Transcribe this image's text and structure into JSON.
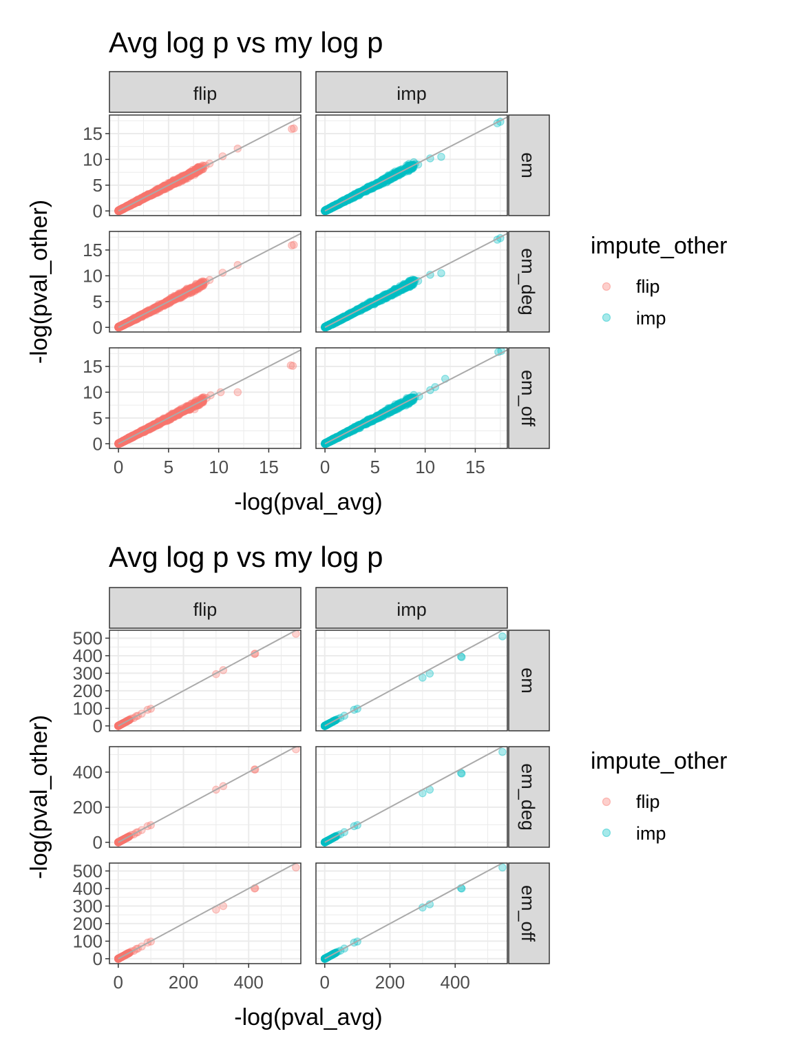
{
  "colors": {
    "flip": "#F8766D",
    "imp": "#00BFC4",
    "refline": "#AAAAAA",
    "strip": "#D9D9D9",
    "grid": "#EBEBEB",
    "border": "#333333"
  },
  "chart_data": [
    {
      "type": "scatter",
      "title": "Avg log p vs my log p",
      "xlabel": "-log(pval_avg)",
      "ylabel": "-log(pval_other)",
      "facet_cols": [
        "flip",
        "imp"
      ],
      "facet_rows": [
        "em",
        "em_deg",
        "em_off"
      ],
      "xlim": [
        -0.9,
        18.2
      ],
      "ylim": [
        -0.9,
        18.6
      ],
      "x_ticks": [
        "0",
        "5",
        "10",
        "15"
      ],
      "x_tick_values": [
        0,
        5,
        10,
        15
      ],
      "y_ticks": [
        "0",
        "5",
        "10",
        "15"
      ],
      "y_tick_values": [
        0,
        5,
        10,
        15
      ],
      "reference_line": "y = x",
      "legend": {
        "title": "impute_other",
        "entries": [
          "flip",
          "imp"
        ],
        "placement": "right"
      },
      "grid": true,
      "panels": [
        {
          "col": "flip",
          "row": "em",
          "bulk_max_x": 8.5,
          "points": [
            [
              7.2,
              7.6
            ],
            [
              7.6,
              7.0
            ],
            [
              8.0,
              7.9
            ],
            [
              8.7,
              8.8
            ],
            [
              9.1,
              9.2
            ],
            [
              10.4,
              10.6
            ],
            [
              11.9,
              12.1
            ],
            [
              17.3,
              15.9
            ],
            [
              17.5,
              16.0
            ]
          ]
        },
        {
          "col": "imp",
          "row": "em",
          "bulk_max_x": 8.9,
          "points": [
            [
              7.0,
              7.4
            ],
            [
              8.2,
              8.1
            ],
            [
              9.0,
              9.1
            ],
            [
              9.3,
              9.0
            ],
            [
              10.5,
              10.2
            ],
            [
              11.6,
              10.5
            ],
            [
              17.2,
              17.0
            ],
            [
              17.5,
              17.3
            ]
          ]
        },
        {
          "col": "flip",
          "row": "em_deg",
          "bulk_max_x": 8.5,
          "points": [
            [
              7.2,
              7.6
            ],
            [
              7.6,
              7.0
            ],
            [
              8.0,
              7.9
            ],
            [
              8.7,
              8.8
            ],
            [
              9.1,
              9.2
            ],
            [
              10.4,
              10.6
            ],
            [
              11.9,
              12.1
            ],
            [
              17.3,
              15.9
            ],
            [
              17.5,
              16.0
            ]
          ]
        },
        {
          "col": "imp",
          "row": "em_deg",
          "bulk_max_x": 8.9,
          "points": [
            [
              7.0,
              7.4
            ],
            [
              8.2,
              8.1
            ],
            [
              9.0,
              9.1
            ],
            [
              9.3,
              9.0
            ],
            [
              10.5,
              10.2
            ],
            [
              11.6,
              10.5
            ],
            [
              17.2,
              17.0
            ],
            [
              17.5,
              17.3
            ]
          ]
        },
        {
          "col": "flip",
          "row": "em_off",
          "bulk_max_x": 8.5,
          "points": [
            [
              7.0,
              7.2
            ],
            [
              7.6,
              6.7
            ],
            [
              8.0,
              7.9
            ],
            [
              8.8,
              8.9
            ],
            [
              9.2,
              9.4
            ],
            [
              10.2,
              10.0
            ],
            [
              11.9,
              10.0
            ],
            [
              17.2,
              15.2
            ],
            [
              17.4,
              15.1
            ]
          ]
        },
        {
          "col": "imp",
          "row": "em_off",
          "bulk_max_x": 8.9,
          "points": [
            [
              7.0,
              7.3
            ],
            [
              8.2,
              8.1
            ],
            [
              9.0,
              9.0
            ],
            [
              9.4,
              9.2
            ],
            [
              10.5,
              10.4
            ],
            [
              11.0,
              11.0
            ],
            [
              12.0,
              12.6
            ],
            [
              17.3,
              17.8
            ],
            [
              17.6,
              18.0
            ]
          ]
        }
      ]
    },
    {
      "type": "scatter",
      "title": "Avg log p vs my log p",
      "xlabel": "-log(pval_avg)",
      "ylabel": "-log(pval_other)",
      "facet_cols": [
        "flip",
        "imp"
      ],
      "facet_rows": [
        "em",
        "em_deg",
        "em_off"
      ],
      "xlim": [
        -27,
        560
      ],
      "ylim": [
        -28,
        545
      ],
      "x_ticks": [
        "0",
        "200",
        "400"
      ],
      "x_tick_values": [
        0,
        200,
        400
      ],
      "y_ticks_by_row": [
        [
          "0",
          "100",
          "200",
          "300",
          "400",
          "500"
        ],
        [
          "0",
          "200",
          "400"
        ],
        [
          "0",
          "100",
          "200",
          "300",
          "400",
          "500"
        ]
      ],
      "y_tick_values_by_row": [
        [
          0,
          100,
          200,
          300,
          400,
          500
        ],
        [
          0,
          200,
          400
        ],
        [
          0,
          100,
          200,
          300,
          400,
          500
        ]
      ],
      "reference_line": "y = x",
      "legend": {
        "title": "impute_other",
        "entries": [
          "flip",
          "imp"
        ],
        "placement": "right"
      },
      "grid": true,
      "panels": [
        {
          "col": "flip",
          "row": "em",
          "bulk_max_x": 35,
          "points": [
            [
              40,
              42
            ],
            [
              48,
              45
            ],
            [
              55,
              55
            ],
            [
              60,
              58
            ],
            [
              72,
              70
            ],
            [
              90,
              92
            ],
            [
              100,
              98
            ],
            [
              300,
              295
            ],
            [
              322,
              318
            ],
            [
              418,
              410
            ],
            [
              420,
              412
            ],
            [
              545,
              525
            ]
          ]
        },
        {
          "col": "imp",
          "row": "em",
          "bulk_max_x": 35,
          "points": [
            [
              40,
              40
            ],
            [
              48,
              46
            ],
            [
              60,
              58
            ],
            [
              90,
              92
            ],
            [
              100,
              98
            ],
            [
              300,
              275
            ],
            [
              322,
              298
            ],
            [
              418,
              395
            ],
            [
              420,
              392
            ],
            [
              545,
              510
            ]
          ]
        },
        {
          "col": "flip",
          "row": "em_deg",
          "bulk_max_x": 35,
          "points": [
            [
              40,
              42
            ],
            [
              48,
              45
            ],
            [
              55,
              55
            ],
            [
              60,
              58
            ],
            [
              72,
              70
            ],
            [
              90,
              92
            ],
            [
              100,
              98
            ],
            [
              300,
              300
            ],
            [
              322,
              320
            ],
            [
              418,
              415
            ],
            [
              420,
              415
            ],
            [
              545,
              530
            ]
          ]
        },
        {
          "col": "imp",
          "row": "em_deg",
          "bulk_max_x": 35,
          "points": [
            [
              40,
              40
            ],
            [
              48,
              46
            ],
            [
              60,
              58
            ],
            [
              90,
              92
            ],
            [
              100,
              98
            ],
            [
              300,
              280
            ],
            [
              322,
              300
            ],
            [
              418,
              395
            ],
            [
              420,
              392
            ],
            [
              545,
              515
            ]
          ]
        },
        {
          "col": "flip",
          "row": "em_off",
          "bulk_max_x": 35,
          "points": [
            [
              40,
              42
            ],
            [
              48,
              45
            ],
            [
              55,
              55
            ],
            [
              60,
              58
            ],
            [
              72,
              70
            ],
            [
              90,
              92
            ],
            [
              100,
              98
            ],
            [
              300,
              280
            ],
            [
              322,
              300
            ],
            [
              418,
              400
            ],
            [
              420,
              402
            ],
            [
              545,
              520
            ]
          ]
        },
        {
          "col": "imp",
          "row": "em_off",
          "bulk_max_x": 35,
          "points": [
            [
              40,
              40
            ],
            [
              48,
              46
            ],
            [
              60,
              58
            ],
            [
              90,
              92
            ],
            [
              100,
              98
            ],
            [
              300,
              292
            ],
            [
              322,
              310
            ],
            [
              418,
              402
            ],
            [
              420,
              400
            ],
            [
              545,
              520
            ]
          ]
        }
      ]
    }
  ]
}
